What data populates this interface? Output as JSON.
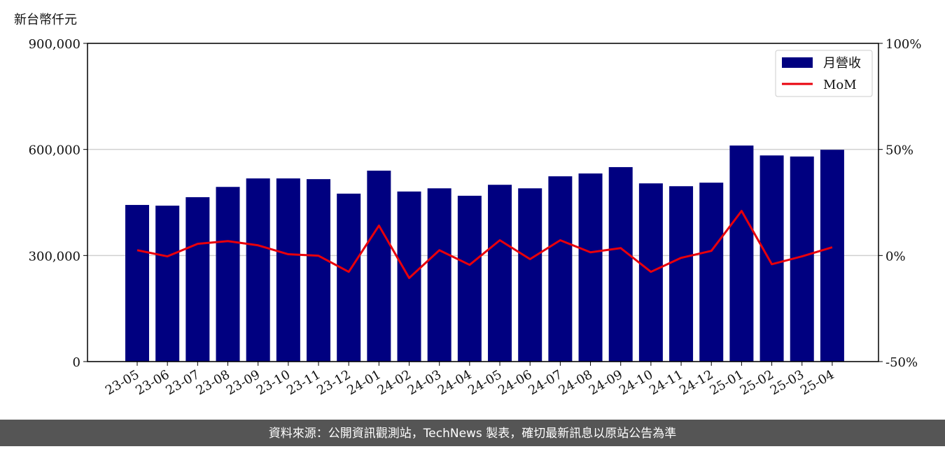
{
  "chart_data": {
    "type": "bar",
    "y_label": "新台幣仟元",
    "categories": [
      "23-05",
      "23-06",
      "23-07",
      "23-08",
      "23-09",
      "23-10",
      "23-11",
      "23-12",
      "24-01",
      "24-02",
      "24-03",
      "24-04",
      "24-05",
      "24-06",
      "24-07",
      "24-08",
      "24-09",
      "24-10",
      "24-11",
      "24-12",
      "25-01",
      "25-02",
      "25-03",
      "25-04"
    ],
    "series": [
      {
        "name": "月營收",
        "type": "bar",
        "color": "#000080",
        "values": [
          443000,
          441000,
          465000,
          494000,
          518000,
          518000,
          516000,
          475000,
          540000,
          481000,
          490000,
          469000,
          500000,
          490000,
          524000,
          532000,
          550000,
          504000,
          496000,
          506000,
          611000,
          583000,
          580000,
          599000
        ]
      },
      {
        "name": "MoM",
        "type": "line",
        "axis": "y2",
        "color": "#e8000b",
        "values": [
          2.5,
          -0.4,
          5.5,
          6.8,
          4.8,
          0.6,
          -0.1,
          -7.7,
          14.1,
          -10.6,
          2.5,
          -4.4,
          7.2,
          -1.7,
          7.2,
          1.5,
          3.5,
          -7.7,
          -1.1,
          2.2,
          21.0,
          -4.1,
          -0.4,
          3.9
        ]
      }
    ],
    "ylim": [
      0,
      900000
    ],
    "yticks": [
      {
        "value": 0,
        "label": "0"
      },
      {
        "value": 300000,
        "label": "300,000"
      },
      {
        "value": 600000,
        "label": "600,000"
      },
      {
        "value": 900000,
        "label": "900,000"
      }
    ],
    "y2lim": [
      -50,
      100
    ],
    "y2ticks": [
      {
        "value": -50,
        "label": "-50%"
      },
      {
        "value": 0,
        "label": "0%"
      },
      {
        "value": 50,
        "label": "50%"
      },
      {
        "value": 100,
        "label": "100%"
      }
    ],
    "grid": true,
    "legend": "upper right"
  },
  "source": "資料來源：公開資訊觀測站，TechNews 製表，確切最新訊息以原站公告為準"
}
